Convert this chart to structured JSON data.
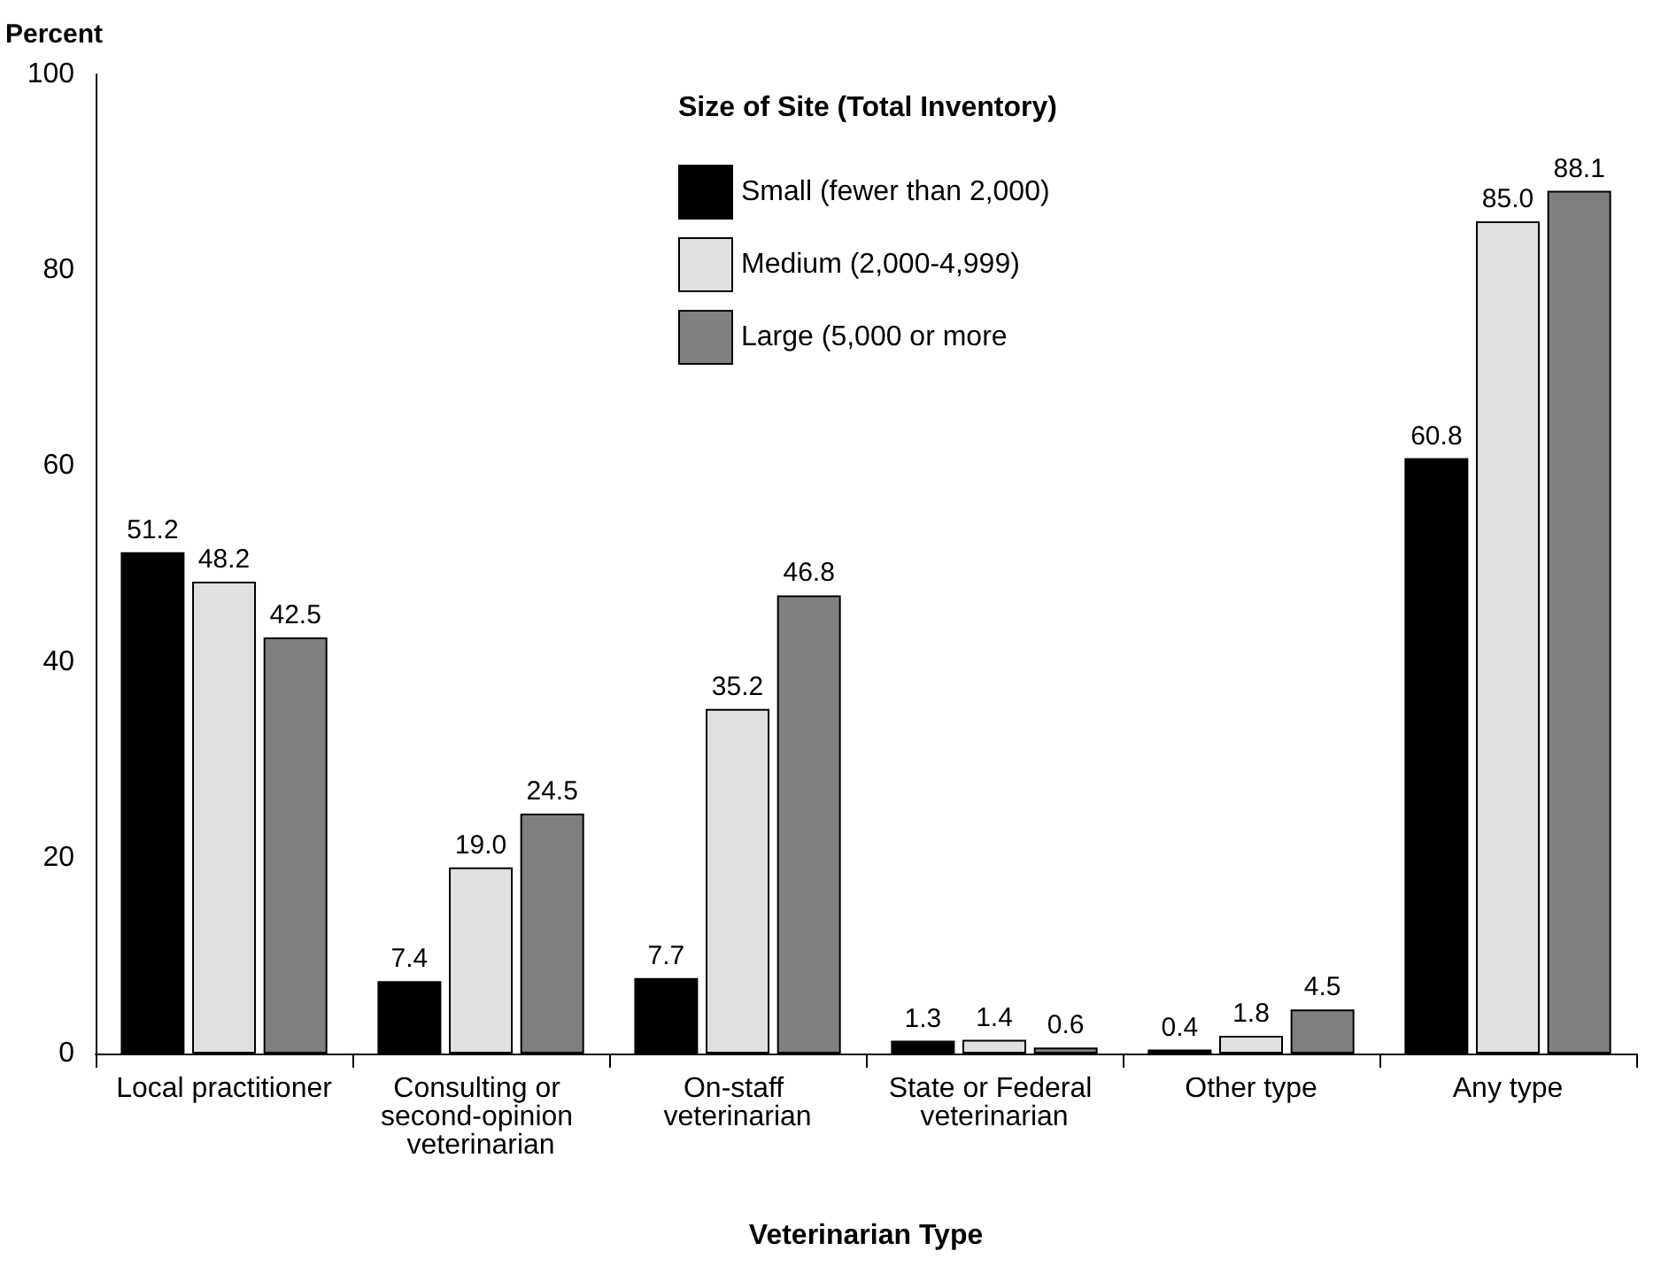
{
  "chart_data": {
    "type": "bar",
    "xlabel": "Veterinarian Type",
    "ylabel": "Percent",
    "legend_title": "Size of Site (Total Inventory)",
    "categories": [
      "Local practitioner",
      "Consulting or second-opinion veterinarian",
      "On-staff veterinarian",
      "State or Federal veterinarian",
      "Other type",
      "Any type"
    ],
    "series": [
      {
        "name": "Small (fewer than 2,000)",
        "color": "#000000",
        "values": [
          51.2,
          7.4,
          7.7,
          1.3,
          0.4,
          60.8
        ],
        "value_labels": [
          "51.2",
          "7.4",
          "7.7",
          "1.3",
          "0.4",
          "60.8"
        ]
      },
      {
        "name": "Medium (2,000-4,999)",
        "color": "#e0e0e0",
        "values": [
          48.2,
          19.0,
          35.2,
          1.4,
          1.8,
          85.0
        ],
        "value_labels": [
          "48.2",
          "19.0",
          "35.2",
          "1.4",
          "1.8",
          "85.0"
        ]
      },
      {
        "name": "Large (5,000 or more",
        "color": "#808080",
        "values": [
          42.5,
          24.5,
          46.8,
          0.6,
          4.5,
          88.1
        ],
        "value_labels": [
          "42.5",
          "24.5",
          "46.8",
          "0.6",
          "4.5",
          "88.1"
        ]
      }
    ],
    "ylim": [
      0,
      100
    ],
    "yticks": [
      0,
      20,
      40,
      60,
      80,
      100
    ],
    "grid": false,
    "legend": "top"
  }
}
